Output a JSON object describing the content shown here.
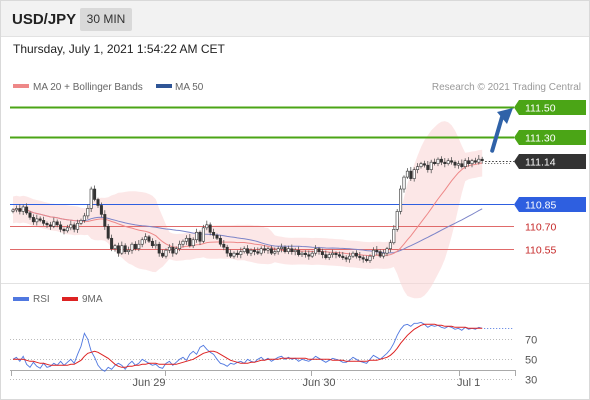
{
  "header": {
    "symbol": "USD/JPY",
    "timeframe": "30 MIN",
    "datetime": "Thursday, July 1, 2021 1:54:22 AM CET"
  },
  "legend": {
    "ma20_label": "MA 20 + Bollinger Bands",
    "ma50_label": "MA 50",
    "credit": "Research © 2021 Trading Central"
  },
  "rsi_legend": {
    "rsi_label": "RSI",
    "ma_label": "9MA"
  },
  "colors": {
    "resistance": "#4ba516",
    "support_blue": "#2e5fe0",
    "support_red": "#e06a6a",
    "last_price_box": "#333333",
    "bollinger_fill": "#f9d3d3",
    "ma20": "#ee8888",
    "ma50": "#7c84c8",
    "arrow": "#2f62a8",
    "candle_up": "#2a7a2a",
    "candle_down": "#c62828",
    "rsi_line": "#5078e0",
    "rsi_ma": "#dd2222"
  },
  "chart_data": {
    "type": "candlestick",
    "symbol": "USD/JPY",
    "timeframe": "30 MIN",
    "price_levels": [
      {
        "label": "111.50",
        "value": 111.5,
        "kind": "resistance"
      },
      {
        "label": "111.30",
        "value": 111.3,
        "kind": "resistance"
      },
      {
        "label": "111.14",
        "value": 111.14,
        "kind": "last_price"
      },
      {
        "label": "110.85",
        "value": 110.85,
        "kind": "pivot"
      },
      {
        "label": "110.70",
        "value": 110.7,
        "kind": "support"
      },
      {
        "label": "110.55",
        "value": 110.55,
        "kind": "support"
      }
    ],
    "forecast_arrow": {
      "from": 111.14,
      "to": 111.5,
      "direction": "up"
    },
    "price_ylim": [
      110.2,
      111.6
    ],
    "x_ticks": [
      "Jun 29",
      "Jun 30",
      "Jul 1"
    ],
    "x_tick_index": [
      40,
      90,
      134
    ],
    "closes": [
      110.81,
      110.82,
      110.8,
      110.83,
      110.79,
      110.76,
      110.73,
      110.75,
      110.74,
      110.72,
      110.71,
      110.7,
      110.73,
      110.71,
      110.68,
      110.67,
      110.69,
      110.71,
      110.68,
      110.72,
      110.74,
      110.77,
      110.82,
      110.95,
      110.88,
      110.84,
      110.78,
      110.7,
      110.62,
      110.55,
      110.57,
      110.52,
      110.57,
      110.53,
      110.54,
      110.58,
      110.55,
      110.58,
      110.61,
      110.63,
      110.6,
      110.57,
      110.58,
      110.52,
      110.5,
      110.54,
      110.56,
      110.52,
      110.55,
      110.58,
      110.6,
      110.62,
      110.57,
      110.61,
      110.66,
      110.6,
      110.69,
      110.71,
      110.66,
      110.64,
      110.62,
      110.58,
      110.56,
      110.52,
      110.5,
      110.52,
      110.51,
      110.53,
      110.55,
      110.52,
      110.54,
      110.53,
      110.52,
      110.55,
      110.54,
      110.55,
      110.52,
      110.53,
      110.55,
      110.56,
      110.53,
      110.55,
      110.53,
      110.54,
      110.51,
      110.52,
      110.51,
      110.5,
      110.52,
      110.55,
      110.53,
      110.51,
      110.49,
      110.51,
      110.52,
      110.51,
      110.5,
      110.49,
      110.48,
      110.5,
      110.52,
      110.5,
      110.49,
      110.48,
      110.47,
      110.5,
      110.54,
      110.53,
      110.5,
      110.52,
      110.55,
      110.59,
      110.68,
      110.8,
      110.95,
      111.03,
      111.07,
      111.02,
      111.08,
      111.1,
      111.12,
      111.11,
      111.08,
      111.13,
      111.12,
      111.15,
      111.13,
      111.12,
      111.14,
      111.13,
      111.11,
      111.12,
      111.1,
      111.14,
      111.12,
      111.14,
      111.13,
      111.15,
      111.14
    ],
    "rsi_ticks": [
      70,
      50,
      30
    ],
    "rsi_ylim": [
      18,
      95
    ],
    "rsi": [
      50,
      52,
      48,
      53,
      45,
      42,
      47,
      43,
      41,
      46,
      42,
      43,
      46,
      44,
      48,
      44,
      47,
      50,
      46,
      55,
      63,
      76,
      70,
      58,
      52,
      44,
      40,
      38,
      42,
      40,
      44,
      46,
      44,
      40,
      45,
      48,
      44,
      46,
      50,
      48,
      46,
      44,
      45,
      42,
      41,
      46,
      48,
      44,
      47,
      50,
      52,
      49,
      55,
      58,
      55,
      62,
      64,
      60,
      57,
      55,
      50,
      46,
      45,
      43,
      46,
      45,
      47,
      48,
      46,
      50,
      48,
      47,
      50,
      52,
      49,
      51,
      48,
      50,
      52,
      53,
      50,
      52,
      50,
      51,
      48,
      50,
      49,
      48,
      50,
      53,
      51,
      49,
      47,
      49,
      51,
      50,
      49,
      47,
      47,
      49,
      52,
      50,
      48,
      47,
      46,
      50,
      54,
      52,
      50,
      53,
      56,
      60,
      66,
      74,
      80,
      84,
      85,
      83,
      86,
      86,
      87,
      85,
      82,
      84,
      83,
      84,
      82,
      81,
      83,
      82,
      80,
      81,
      79,
      82,
      80,
      81,
      80,
      82,
      81
    ],
    "rsi_ma": [
      50,
      50,
      50,
      50,
      49,
      48,
      48,
      47,
      46,
      46,
      45,
      44,
      44,
      44,
      44,
      44,
      44,
      45,
      45,
      47,
      49,
      53,
      56,
      57,
      58,
      57,
      55,
      53,
      51,
      48,
      45,
      43,
      42,
      42,
      43,
      43,
      44,
      44,
      45,
      45,
      46,
      46,
      46,
      45,
      45,
      45,
      45,
      45,
      45,
      46,
      47,
      48,
      49,
      50,
      52,
      54,
      56,
      57,
      58,
      58,
      57,
      55,
      53,
      51,
      49,
      48,
      47,
      46,
      46,
      46,
      47,
      47,
      48,
      49,
      49,
      50,
      50,
      50,
      50,
      51,
      51,
      51,
      51,
      51,
      51,
      51,
      51,
      50,
      50,
      50,
      50,
      50,
      50,
      50,
      49,
      49,
      49,
      49,
      48,
      48,
      48,
      48,
      48,
      48,
      48,
      49,
      49,
      49,
      50,
      51,
      52,
      54,
      57,
      61,
      66,
      70,
      74,
      77,
      80,
      82,
      84,
      85,
      85,
      85,
      85,
      84,
      84,
      83,
      83,
      83,
      82,
      82,
      82,
      82,
      81,
      81,
      81,
      81,
      81
    ]
  }
}
